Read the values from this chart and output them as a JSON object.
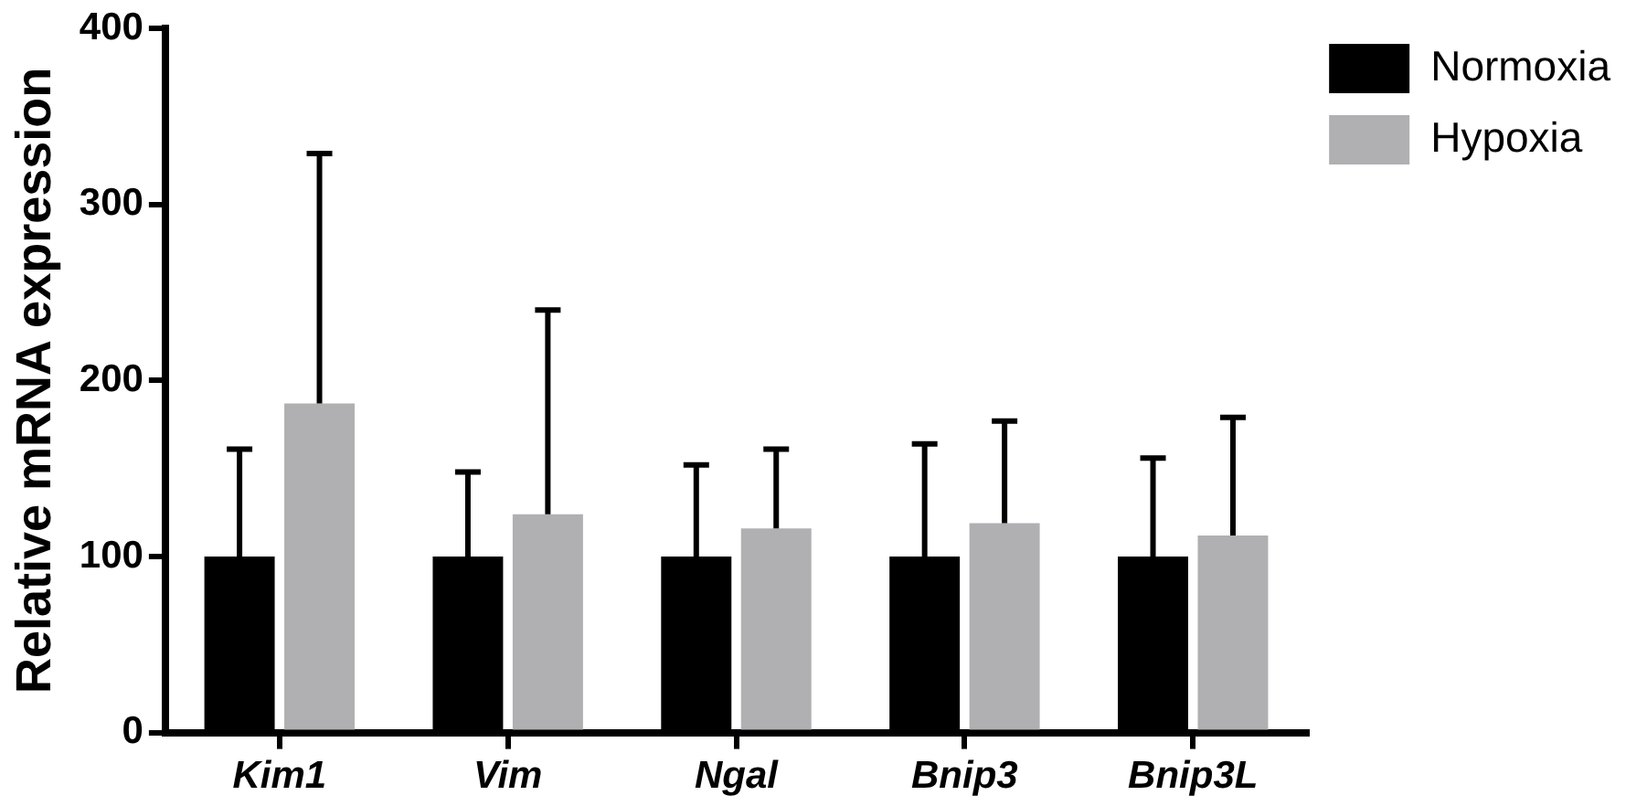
{
  "chart_data": {
    "type": "bar",
    "ylabel": "Relative mRNA expression",
    "categories": [
      "Kim1",
      "Vim",
      "Ngal",
      "Bnip3",
      "Bnip3L"
    ],
    "series": [
      {
        "name": "Normoxia",
        "color": "#000000",
        "values": [
          100,
          100,
          100,
          100,
          100
        ],
        "errors": [
          [
            100,
            161
          ],
          [
            100,
            148
          ],
          [
            100,
            152
          ],
          [
            100,
            164
          ],
          [
            100,
            156
          ]
        ]
      },
      {
        "name": "Hypoxia",
        "color": "#b0b0b2",
        "values": [
          187,
          124,
          116,
          119,
          112
        ],
        "errors": [
          [
            187,
            329
          ],
          [
            124,
            240
          ],
          [
            116,
            161
          ],
          [
            119,
            177
          ],
          [
            112,
            179
          ]
        ]
      }
    ],
    "ylim": [
      0,
      400
    ],
    "yticks": [
      0,
      100,
      200,
      300,
      400
    ],
    "legend": "top right"
  }
}
